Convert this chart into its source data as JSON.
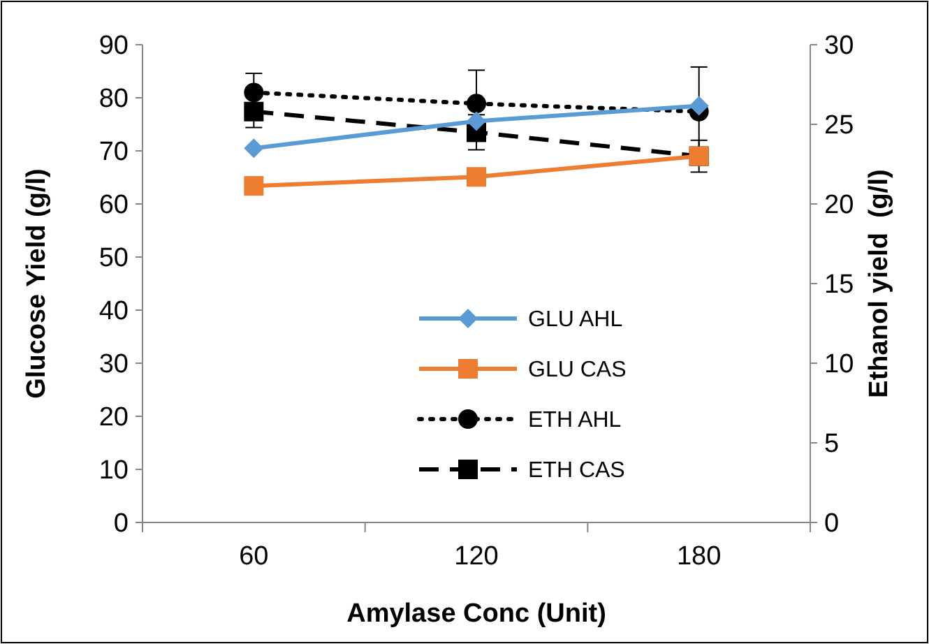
{
  "chart_data": {
    "type": "line",
    "xlabel": "Amylase Conc (Unit)",
    "ylabel": "Glucose Yield (g/l)",
    "y2label": "Ethanol yield  (g/l)",
    "categories": [
      "60",
      "120",
      "180"
    ],
    "ylim": [
      0,
      90
    ],
    "yticks": [
      0,
      10,
      20,
      30,
      40,
      50,
      60,
      70,
      80,
      90
    ],
    "y2lim": [
      0,
      30
    ],
    "y2ticks": [
      0,
      5,
      10,
      15,
      20,
      25,
      30
    ],
    "grid": false,
    "legend": "bottom",
    "series": [
      {
        "name": "GLU AHL",
        "color": "#5b9bd5",
        "values": [
          70.5,
          75.6,
          78.5
        ],
        "marker": "diamond",
        "line_style": "solid"
      },
      {
        "name": "GLU CAS",
        "color": "#ed7d31",
        "values": [
          63.4,
          65.1,
          69
        ],
        "marker": "square",
        "line_style": "solid"
      },
      {
        "name": "ETH AHL",
        "color": "#000000",
        "axis": "y2",
        "values": [
          27.0,
          26.3,
          25.8
        ],
        "errors": [
          1.2,
          2.1,
          2.8
        ],
        "marker": "circle",
        "line_style": "dotted"
      },
      {
        "name": "ETH CAS",
        "color": "#000000",
        "axis": "y2",
        "values": [
          25.8,
          24.5,
          23.0
        ],
        "errors": [
          1.0,
          1.1,
          1.0
        ],
        "marker": "square",
        "line_style": "dashed"
      }
    ]
  }
}
